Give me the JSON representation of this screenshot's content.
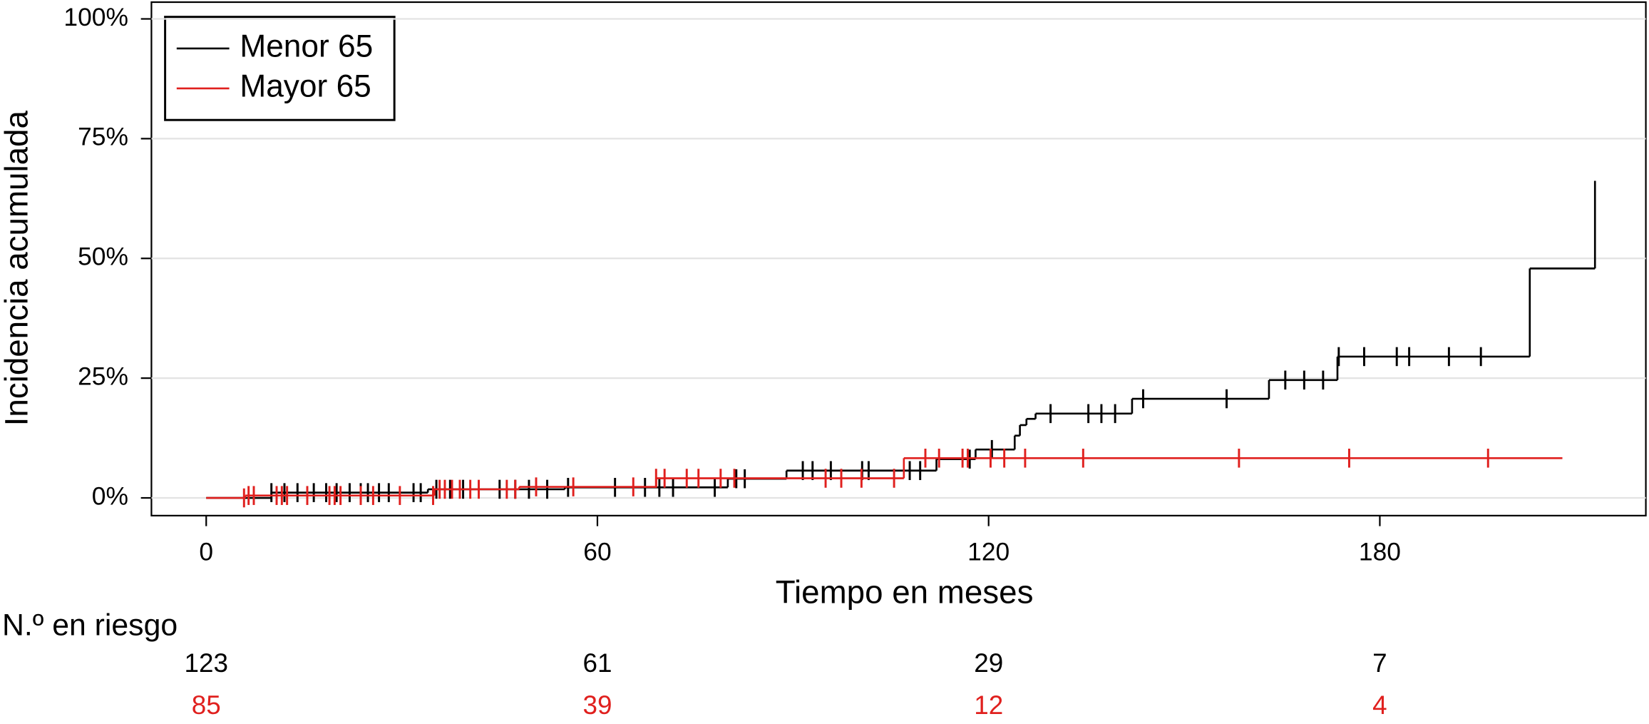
{
  "chart_data": {
    "type": "step",
    "xlabel": "Tiempo en meses",
    "ylabel": "Incidencia acumulada",
    "xlim": [
      -8.4,
      220.8
    ],
    "ylim": [
      -3.7,
      103.5
    ],
    "xticks": [
      0,
      60,
      120,
      180
    ],
    "yticks": [
      {
        "value": 0,
        "label": "0%"
      },
      {
        "value": 25,
        "label": "25%"
      },
      {
        "value": 50,
        "label": "50%"
      },
      {
        "value": 75,
        "label": "75%"
      },
      {
        "value": 100,
        "label": "100%"
      }
    ],
    "grid": true,
    "legend": "upper left",
    "series": [
      {
        "name": "Menor 65",
        "color": "#000000",
        "x": [
          0,
          10,
          34,
          55,
          80,
          89,
          112,
          118,
          124,
          124.8,
          125.8,
          127.2,
          142,
          163,
          173.5,
          203,
          213
        ],
        "values": [
          0,
          1.1,
          1.8,
          2.2,
          4,
          5.7,
          8.1,
          10.1,
          13,
          15.2,
          16.5,
          17.6,
          20.7,
          24.6,
          29.5,
          47.9,
          66.2
        ],
        "censored": [
          10,
          12,
          14,
          16.5,
          18.4,
          20,
          22,
          23.7,
          24.8,
          26.5,
          28,
          31.8,
          32.9,
          35.3,
          37.4,
          39.4,
          45,
          47.4,
          49.5,
          52.3,
          55.5,
          62.7,
          67.3,
          69.5,
          71.6,
          78,
          81.3,
          82.6,
          91.5,
          93,
          95.8,
          100.6,
          101.6,
          107.9,
          109.5,
          117.1,
          120.5,
          129.5,
          135.3,
          137.3,
          139.4,
          143.7,
          156.5,
          165.5,
          168.4,
          171.3,
          173.7,
          177.6,
          182.6,
          184.5,
          190.6,
          195.5
        ]
      },
      {
        "name": "Mayor 65",
        "color": "#e0201e",
        "x": [
          0,
          6,
          35,
          48,
          69,
          107,
          208
        ],
        "values": [
          0,
          0.5,
          1.8,
          2.3,
          4.1,
          8.3,
          8.3
        ],
        "censored": [
          5.8,
          6.5,
          7.3,
          10.8,
          11.6,
          12.4,
          15.5,
          18.9,
          19.7,
          20.6,
          23.7,
          25.6,
          29.7,
          34.8,
          35.8,
          36.6,
          37.7,
          38.9,
          40.5,
          41.8,
          46.1,
          47.4,
          50.6,
          56.3,
          65.5,
          69,
          70.3,
          73.7,
          75.5,
          78.9,
          81,
          95,
          97.4,
          100.5,
          105.5,
          110.3,
          112.4,
          116,
          116.8,
          120.3,
          122.4,
          125.6,
          134.5,
          158.4,
          175.3,
          196.6
        ]
      }
    ],
    "risk_table": {
      "title": "N.º en riesgo",
      "rows": [
        {
          "color": "#000000",
          "values": [
            123,
            61,
            29,
            7
          ]
        },
        {
          "color": "#e0201e",
          "values": [
            85,
            39,
            12,
            4
          ]
        }
      ]
    }
  }
}
